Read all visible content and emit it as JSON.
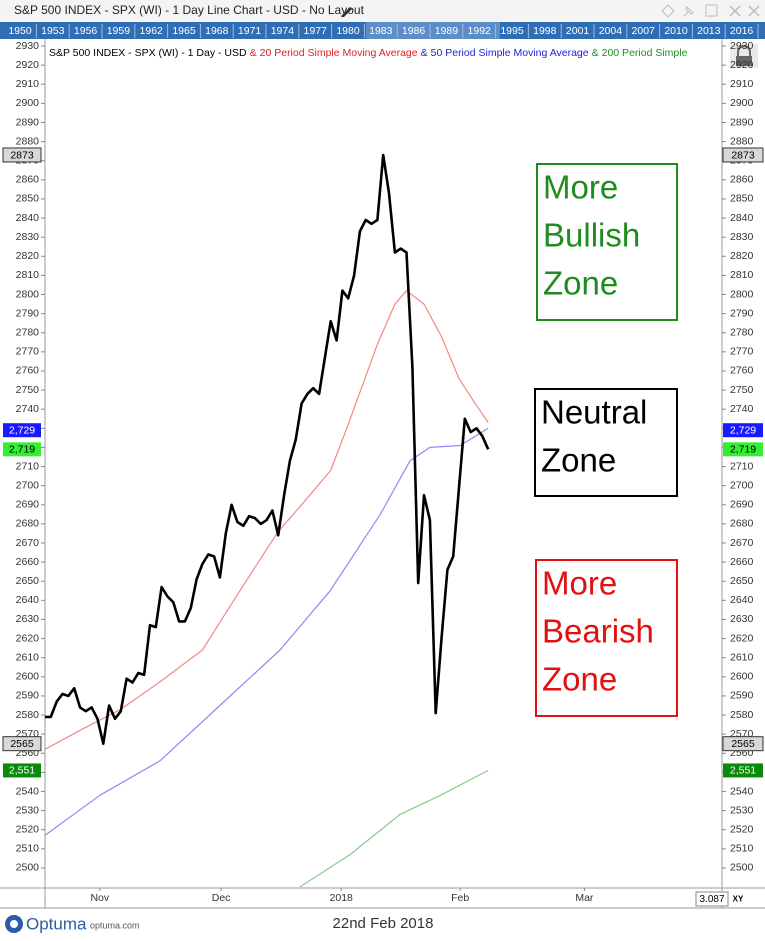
{
  "window_title": "S&P 500 INDEX - SPX (WI) - 1 Day Line Chart - USD - No Layout",
  "year_bar": [
    "1950",
    "1953",
    "1956",
    "1959",
    "1962",
    "1965",
    "1968",
    "1971",
    "1974",
    "1977",
    "1980",
    "1983",
    "1986",
    "1989",
    "1992",
    "1995",
    "1998",
    "2001",
    "2004",
    "2007",
    "2010",
    "2013",
    "2016"
  ],
  "chart_data": {
    "type": "line",
    "legend_separator": "&",
    "xlim": [
      0,
      116.1
    ],
    "xticks": [
      {
        "value": 9.4,
        "label": "Nov"
      },
      {
        "value": 30.2,
        "label": "Dec"
      },
      {
        "value": 50.8,
        "label": "2018"
      },
      {
        "value": 71.2,
        "label": "Feb"
      },
      {
        "value": 92.5,
        "label": "Mar"
      }
    ],
    "ylim": [
      2489.5,
      2934.2
    ],
    "yticks": [
      2500,
      2510,
      2520,
      2530,
      2540,
      2550,
      2560,
      2570,
      2580,
      2590,
      2600,
      2610,
      2620,
      2630,
      2640,
      2650,
      2660,
      2670,
      2680,
      2690,
      2700,
      2710,
      2720,
      2730,
      2740,
      2750,
      2760,
      2770,
      2780,
      2790,
      2800,
      2810,
      2820,
      2830,
      2840,
      2850,
      2860,
      2870,
      2880,
      2890,
      2900,
      2910,
      2920,
      2930
    ],
    "series": [
      {
        "name": "S&P 500 INDEX - SPX (WI) - 1 Day - USD",
        "color": "#000000",
        "width": 2.6,
        "x": [
          0,
          1,
          2,
          3,
          4,
          5,
          6,
          7,
          8,
          9,
          10,
          11,
          12,
          13,
          14,
          15,
          16,
          17,
          18,
          19,
          20,
          21,
          22,
          23,
          24,
          25,
          26,
          27,
          28,
          29,
          30,
          31,
          32,
          33,
          34,
          35,
          36,
          37,
          38,
          39,
          40,
          41,
          42,
          43,
          44,
          45,
          46,
          47,
          48,
          49,
          50,
          51,
          52,
          53,
          54,
          55,
          56,
          57,
          58,
          59,
          60,
          61,
          62,
          63,
          64,
          65,
          66,
          67,
          68,
          69,
          70,
          71,
          72,
          73,
          74,
          75,
          76
        ],
        "values": [
          2579,
          2579,
          2587,
          2591,
          2590,
          2594,
          2584,
          2582,
          2584,
          2578,
          2565,
          2585,
          2578,
          2582,
          2599,
          2597,
          2602,
          2601,
          2627,
          2626,
          2647,
          2642,
          2639,
          2629,
          2629,
          2636,
          2651,
          2659,
          2664,
          2663,
          2652,
          2675,
          2690,
          2681,
          2679,
          2684,
          2683,
          2680,
          2682,
          2687,
          2674,
          2695,
          2713,
          2724,
          2743,
          2748,
          2751,
          2748,
          2767,
          2786,
          2776,
          2802,
          2798,
          2810,
          2833,
          2839,
          2837,
          2839,
          2873,
          2853,
          2822,
          2824,
          2822,
          2762,
          2649,
          2695,
          2682,
          2581,
          2620,
          2656,
          2663,
          2699,
          2735,
          2728,
          2730,
          2726,
          2719
        ]
      },
      {
        "name": "20 Period Simple Moving Average",
        "color": "#f08a80",
        "width": 1.2,
        "x": [
          0,
          6,
          13,
          20,
          27,
          33,
          40,
          44,
          49,
          52,
          57,
          60,
          62,
          65,
          68,
          71,
          74,
          76
        ],
        "values": [
          2562,
          2572,
          2583,
          2598,
          2614,
          2643,
          2676,
          2690,
          2708,
          2732,
          2774,
          2795,
          2802,
          2795,
          2778,
          2756,
          2742,
          2733
        ]
      },
      {
        "name": "50 Period Simple Moving Average",
        "color": "#8a8af5",
        "width": 1.2,
        "x": [
          0,
          9.4,
          19.7,
          30,
          40.3,
          48.9,
          57.5,
          62.6,
          66,
          71.2,
          76
        ],
        "values": [
          2517,
          2538,
          2556,
          2585,
          2614,
          2645,
          2685,
          2713,
          2720,
          2721,
          2730
        ]
      },
      {
        "name": "200 Period Simple",
        "color": "#8cc88c",
        "width": 1.2,
        "x": [
          43.7,
          52.3,
          60.9,
          67.8,
          76
        ],
        "values": [
          2490,
          2507,
          2528,
          2538,
          2551
        ]
      }
    ],
    "price_markers": [
      {
        "value": 2873,
        "color": "#d8d8d8",
        "text_color": "#000000"
      },
      {
        "value": 2565,
        "color": "#d8d8d8",
        "text_color": "#000000"
      },
      {
        "value": 2729,
        "label": "2,729",
        "color": "#1a1aff",
        "text_color": "#ffffff"
      },
      {
        "value": 2719,
        "label": "2,719",
        "color": "#33ee33",
        "text_color": "#000000"
      },
      {
        "value": 2551,
        "label": "2,551",
        "color": "#0a8a0a",
        "text_color": "#ffffff"
      }
    ],
    "annotations": [
      {
        "lines": [
          "More",
          "Bullish",
          "Zone"
        ],
        "color": "#1e8c1e"
      },
      {
        "lines": [
          "Neutral",
          "Zone"
        ],
        "color": "#000000"
      },
      {
        "lines": [
          "More",
          "Bearish",
          "Zone"
        ],
        "color": "#e31010"
      }
    ],
    "x_scale_label": "3.087",
    "xy_label": "XY"
  },
  "footer": {
    "brand": "Optuma",
    "site": "optuma.com",
    "date": "22nd Feb 2018"
  }
}
